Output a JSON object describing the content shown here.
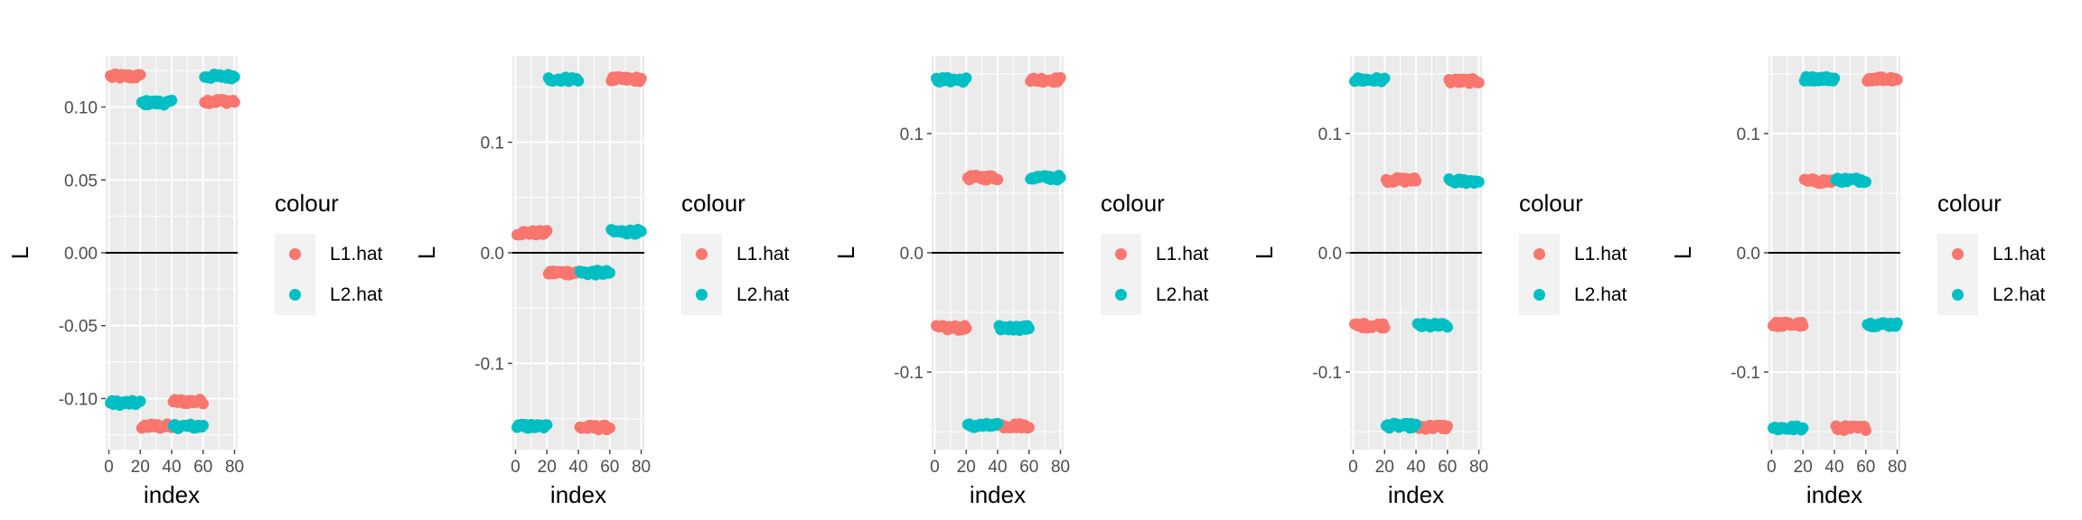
{
  "colors": {
    "L1.hat": "#F8766D",
    "L2.hat": "#00BFC4",
    "panel_bg": "#EBEBEB",
    "grid": "#FFFFFF",
    "tick": "#4D4D4D",
    "hline": "#000000"
  },
  "chart_data": [
    {
      "type": "scatter",
      "xlabel": "index",
      "ylabel": "L",
      "xlim": [
        -2,
        82
      ],
      "ylim": [
        -0.135,
        0.135
      ],
      "xticks": [
        0,
        20,
        40,
        60,
        80
      ],
      "xtick_labels": [
        "0",
        "20",
        "40",
        "60",
        "80"
      ],
      "yticks": [
        -0.1,
        -0.05,
        0,
        0.05,
        0.1
      ],
      "ytick_labels": [
        "-0.10",
        "-0.05",
        "0.00",
        "0.05",
        "0.10"
      ],
      "hline": 0,
      "legend": {
        "title": "colour",
        "entries": [
          "L1.hat",
          "L2.hat"
        ]
      },
      "series": [
        {
          "name": "L1.hat",
          "segments": [
            {
              "x": [
                1,
                20
              ],
              "y": 0.121
            },
            {
              "x": [
                21,
                40
              ],
              "y": -0.119
            },
            {
              "x": [
                41,
                60
              ],
              "y": -0.102
            },
            {
              "x": [
                61,
                80
              ],
              "y": 0.104
            }
          ]
        },
        {
          "name": "L2.hat",
          "segments": [
            {
              "x": [
                1,
                20
              ],
              "y": -0.103
            },
            {
              "x": [
                21,
                40
              ],
              "y": 0.103
            },
            {
              "x": [
                41,
                60
              ],
              "y": -0.119
            },
            {
              "x": [
                61,
                80
              ],
              "y": 0.121
            }
          ]
        }
      ]
    },
    {
      "type": "scatter",
      "xlabel": "index",
      "ylabel": "L",
      "xlim": [
        -2,
        82
      ],
      "ylim": [
        -0.178,
        0.178
      ],
      "xticks": [
        0,
        20,
        40,
        60,
        80
      ],
      "xtick_labels": [
        "0",
        "20",
        "40",
        "60",
        "80"
      ],
      "yticks": [
        -0.1,
        0,
        0.1
      ],
      "ytick_labels": [
        "-0.1",
        "0.0",
        "0.1"
      ],
      "hline": 0,
      "legend": {
        "title": "colour",
        "entries": [
          "L1.hat",
          "L2.hat"
        ]
      },
      "series": [
        {
          "name": "L1.hat",
          "segments": [
            {
              "x": [
                1,
                20
              ],
              "y": 0.018
            },
            {
              "x": [
                21,
                40
              ],
              "y": -0.018
            },
            {
              "x": [
                41,
                60
              ],
              "y": -0.158
            },
            {
              "x": [
                61,
                80
              ],
              "y": 0.157
            }
          ]
        },
        {
          "name": "L2.hat",
          "segments": [
            {
              "x": [
                1,
                20
              ],
              "y": -0.157
            },
            {
              "x": [
                21,
                40
              ],
              "y": 0.157
            },
            {
              "x": [
                41,
                60
              ],
              "y": -0.018
            },
            {
              "x": [
                61,
                80
              ],
              "y": 0.019
            }
          ]
        }
      ]
    },
    {
      "type": "scatter",
      "xlabel": "index",
      "ylabel": "L",
      "xlim": [
        -2,
        82
      ],
      "ylim": [
        -0.165,
        0.165
      ],
      "xticks": [
        0,
        20,
        40,
        60,
        80
      ],
      "xtick_labels": [
        "0",
        "20",
        "40",
        "60",
        "80"
      ],
      "yticks": [
        -0.1,
        0,
        0.1
      ],
      "ytick_labels": [
        "-0.1",
        "0.0",
        "0.1"
      ],
      "hline": 0,
      "legend": {
        "title": "colour",
        "entries": [
          "L1.hat",
          "L2.hat"
        ]
      },
      "series": [
        {
          "name": "L1.hat",
          "segments": [
            {
              "x": [
                1,
                20
              ],
              "y": -0.063
            },
            {
              "x": [
                21,
                40
              ],
              "y": 0.063
            },
            {
              "x": [
                41,
                60
              ],
              "y": -0.145
            },
            {
              "x": [
                61,
                80
              ],
              "y": 0.145
            }
          ]
        },
        {
          "name": "L2.hat",
          "segments": [
            {
              "x": [
                1,
                20
              ],
              "y": 0.145
            },
            {
              "x": [
                21,
                40
              ],
              "y": -0.145
            },
            {
              "x": [
                41,
                60
              ],
              "y": -0.063
            },
            {
              "x": [
                61,
                80
              ],
              "y": 0.063
            }
          ]
        }
      ]
    },
    {
      "type": "scatter",
      "xlabel": "index",
      "ylabel": "L",
      "xlim": [
        -2,
        82
      ],
      "ylim": [
        -0.165,
        0.165
      ],
      "xticks": [
        0,
        20,
        40,
        60,
        80
      ],
      "xtick_labels": [
        "0",
        "20",
        "40",
        "60",
        "80"
      ],
      "yticks": [
        -0.1,
        0,
        0.1
      ],
      "ytick_labels": [
        "-0.1",
        "0.0",
        "0.1"
      ],
      "hline": 0,
      "legend": {
        "title": "colour",
        "entries": [
          "L1.hat",
          "L2.hat"
        ]
      },
      "series": [
        {
          "name": "L1.hat",
          "segments": [
            {
              "x": [
                1,
                20
              ],
              "y": -0.061
            },
            {
              "x": [
                21,
                40
              ],
              "y": 0.061
            },
            {
              "x": [
                41,
                60
              ],
              "y": -0.146
            },
            {
              "x": [
                61,
                80
              ],
              "y": 0.144
            }
          ]
        },
        {
          "name": "L2.hat",
          "segments": [
            {
              "x": [
                1,
                20
              ],
              "y": 0.145
            },
            {
              "x": [
                21,
                40
              ],
              "y": -0.145
            },
            {
              "x": [
                41,
                60
              ],
              "y": -0.061
            },
            {
              "x": [
                61,
                80
              ],
              "y": 0.06
            }
          ]
        }
      ]
    },
    {
      "type": "scatter",
      "xlabel": "index",
      "ylabel": "L",
      "xlim": [
        -2,
        82
      ],
      "ylim": [
        -0.165,
        0.165
      ],
      "xticks": [
        0,
        20,
        40,
        60,
        80
      ],
      "xtick_labels": [
        "0",
        "20",
        "40",
        "60",
        "80"
      ],
      "yticks": [
        -0.1,
        0,
        0.1
      ],
      "ytick_labels": [
        "-0.1",
        "0.0",
        "0.1"
      ],
      "hline": 0,
      "legend": {
        "title": "colour",
        "entries": [
          "L1.hat",
          "L2.hat"
        ]
      },
      "series": [
        {
          "name": "L1.hat",
          "segments": [
            {
              "x": [
                1,
                20
              ],
              "y": -0.06
            },
            {
              "x": [
                21,
                40
              ],
              "y": 0.06
            },
            {
              "x": [
                41,
                60
              ],
              "y": -0.147
            },
            {
              "x": [
                61,
                80
              ],
              "y": 0.146
            }
          ]
        },
        {
          "name": "L2.hat",
          "segments": [
            {
              "x": [
                1,
                20
              ],
              "y": -0.147
            },
            {
              "x": [
                21,
                40
              ],
              "y": 0.146
            },
            {
              "x": [
                41,
                60
              ],
              "y": 0.061
            },
            {
              "x": [
                61,
                80
              ],
              "y": -0.06
            }
          ]
        }
      ]
    }
  ]
}
